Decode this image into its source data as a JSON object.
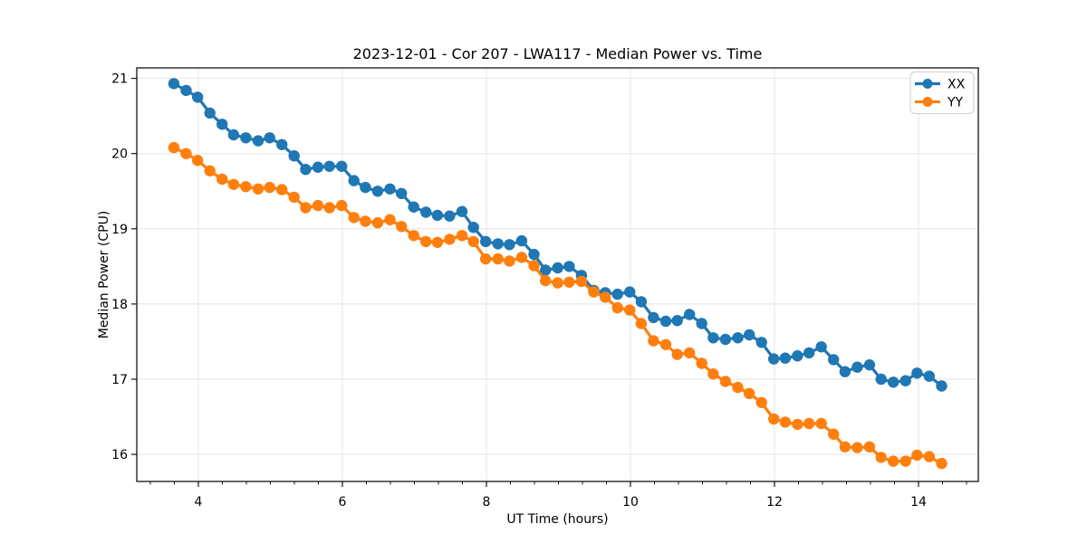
{
  "figure": {
    "background": "#ffffff"
  },
  "chart_data": {
    "type": "line",
    "title": "2023-12-01 - Cor 207 - LWA117 - Median Power vs. Time",
    "xlabel": "UT Time (hours)",
    "ylabel": "Median Power (CPU)",
    "xlim": [
      3.145,
      14.83
    ],
    "ylim": [
      15.64,
      21.14
    ],
    "x_ticks": [
      4,
      6,
      8,
      10,
      12,
      14
    ],
    "y_ticks": [
      16,
      17,
      18,
      19,
      20,
      21
    ],
    "x_minor_step": 0.3333,
    "grid": true,
    "grid_color": "#e4e4e4",
    "spine_color": "#000000",
    "legend_position": "upper right",
    "marker": "circle",
    "x": [
      3.66,
      3.83,
      3.99,
      4.16,
      4.33,
      4.49,
      4.66,
      4.83,
      4.99,
      5.16,
      5.33,
      5.49,
      5.66,
      5.82,
      5.99,
      6.16,
      6.32,
      6.49,
      6.66,
      6.82,
      6.99,
      7.16,
      7.32,
      7.49,
      7.66,
      7.82,
      7.99,
      8.16,
      8.32,
      8.49,
      8.66,
      8.82,
      8.99,
      9.15,
      9.32,
      9.49,
      9.65,
      9.82,
      9.99,
      10.15,
      10.32,
      10.49,
      10.65,
      10.82,
      10.99,
      11.15,
      11.32,
      11.49,
      11.65,
      11.82,
      11.99,
      12.15,
      12.32,
      12.48,
      12.65,
      12.82,
      12.98,
      13.15,
      13.32,
      13.48,
      13.65,
      13.82,
      13.98,
      14.15,
      14.32
    ],
    "series": [
      {
        "name": "XX",
        "color": "#1f77b4",
        "values": [
          20.93,
          20.84,
          20.75,
          20.54,
          20.39,
          20.25,
          20.21,
          20.17,
          20.21,
          20.12,
          19.97,
          19.79,
          19.82,
          19.83,
          19.83,
          19.64,
          19.55,
          19.5,
          19.53,
          19.47,
          19.29,
          19.22,
          19.18,
          19.17,
          19.23,
          19.02,
          18.83,
          18.8,
          18.79,
          18.84,
          18.66,
          18.45,
          18.48,
          18.5,
          18.38,
          18.18,
          18.15,
          18.13,
          18.16,
          18.03,
          17.82,
          17.77,
          17.78,
          17.86,
          17.74,
          17.55,
          17.53,
          17.55,
          17.59,
          17.49,
          17.27,
          17.28,
          17.31,
          17.35,
          17.43,
          17.26,
          17.1,
          17.16,
          17.19,
          17.0,
          16.96,
          16.98,
          17.08,
          17.04,
          16.91
        ]
      },
      {
        "name": "YY",
        "color": "#ff7f0e",
        "values": [
          20.08,
          20.0,
          19.91,
          19.77,
          19.66,
          19.59,
          19.56,
          19.53,
          19.55,
          19.52,
          19.42,
          19.28,
          19.31,
          19.28,
          19.31,
          19.15,
          19.1,
          19.08,
          19.12,
          19.03,
          18.91,
          18.83,
          18.82,
          18.86,
          18.91,
          18.83,
          18.6,
          18.6,
          18.57,
          18.62,
          18.51,
          18.31,
          18.28,
          18.29,
          18.3,
          18.16,
          18.09,
          17.95,
          17.92,
          17.74,
          17.51,
          17.46,
          17.33,
          17.35,
          17.21,
          17.07,
          16.97,
          16.89,
          16.81,
          16.69,
          16.47,
          16.43,
          16.4,
          16.41,
          16.41,
          16.27,
          16.1,
          16.09,
          16.1,
          15.96,
          15.91,
          15.91,
          15.99,
          15.97,
          15.88
        ]
      }
    ]
  }
}
